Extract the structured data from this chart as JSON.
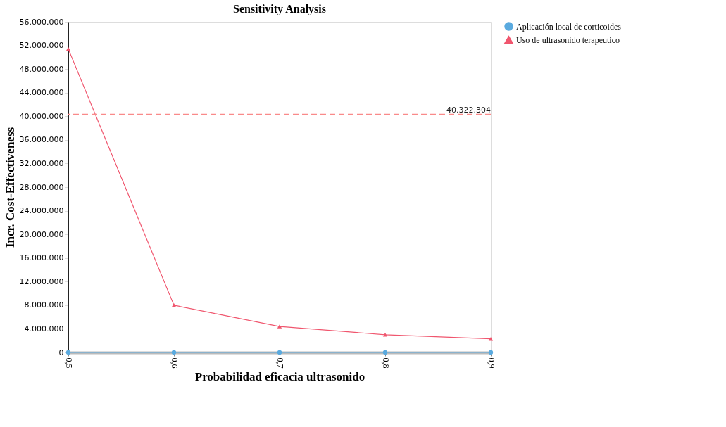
{
  "chart_data": {
    "type": "line",
    "title": "Sensitivity Analysis",
    "xlabel": "Probabilidad eficacia ultrasonido",
    "ylabel": "Incr. Cost-Effectiveness",
    "categories": [
      "0,5",
      "0,6",
      "0,7",
      "0,8",
      "0,9"
    ],
    "series": [
      {
        "name": "Aplicación local de corticoides",
        "color": "#5aaadf",
        "marker": "circle",
        "values": [
          0,
          0,
          0,
          0,
          0
        ]
      },
      {
        "name": "Uso de ultrasonido terapeutico",
        "color": "#f0566e",
        "marker": "triangle",
        "values": [
          51400000,
          8000000,
          4400000,
          3000000,
          2300000
        ]
      }
    ],
    "ylim": [
      0,
      56000000
    ],
    "yticks": [
      0,
      {
        "value": 4000000,
        "label": "4.000.000"
      },
      {
        "value": 8000000,
        "label": "8.000.000"
      },
      {
        "value": 12000000,
        "label": "12.000.000"
      },
      {
        "value": 16000000,
        "label": "16.000.000"
      },
      {
        "value": 20000000,
        "label": "20.000.000"
      },
      {
        "value": 24000000,
        "label": "24.000.000"
      },
      {
        "value": 28000000,
        "label": "28.000.000"
      },
      {
        "value": 32000000,
        "label": "32.000.000"
      },
      {
        "value": 36000000,
        "label": "36.000.000"
      },
      {
        "value": 40000000,
        "label": "40.000.000"
      },
      {
        "value": 44000000,
        "label": "44.000.000"
      },
      {
        "value": 48000000,
        "label": "48.000.000"
      },
      {
        "value": 52000000,
        "label": "52.000.000"
      },
      {
        "value": 56000000,
        "label": "56.000.000"
      }
    ],
    "ref_lines": [
      {
        "axis": "y",
        "value": 40322304,
        "label": "40.322.304",
        "color": "#f98a8a",
        "line_style": "dashed"
      }
    ],
    "legend": "right",
    "grid": false,
    "line_style": "solid"
  }
}
